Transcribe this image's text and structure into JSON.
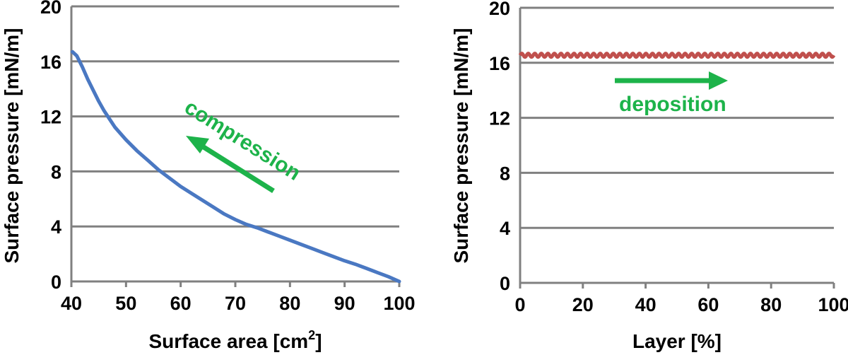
{
  "chart_data": [
    {
      "type": "line",
      "xlabel": "Surface area [cm",
      "xlabel_sup": "2",
      "xlabel_end": "]",
      "ylabel": "Surface pressure [mN/m]",
      "xlim": [
        40,
        100
      ],
      "ylim": [
        0,
        20
      ],
      "xticks": [
        40,
        50,
        60,
        70,
        80,
        90,
        100
      ],
      "yticks": [
        0,
        4,
        8,
        12,
        16,
        20
      ],
      "xtick_labels": [
        "40",
        "50",
        "60",
        "70",
        "80",
        "90",
        "100"
      ],
      "ytick_labels": [
        "0",
        "4",
        "8",
        "12",
        "16",
        "20"
      ],
      "grid": true,
      "series": [
        {
          "color": "#4a78c2",
          "x": [
            40.2,
            41,
            42,
            43,
            44,
            45,
            46,
            47,
            48,
            50,
            52,
            54,
            56,
            58,
            60,
            62,
            64,
            66,
            68,
            70,
            72,
            74,
            76,
            78,
            80,
            82,
            84,
            86,
            88,
            90,
            92,
            94,
            96,
            98,
            100
          ],
          "y": [
            16.7,
            16.4,
            15.6,
            14.7,
            13.9,
            13.1,
            12.4,
            11.8,
            11.2,
            10.3,
            9.5,
            8.8,
            8.1,
            7.5,
            6.9,
            6.4,
            5.9,
            5.4,
            4.9,
            4.5,
            4.15,
            3.9,
            3.6,
            3.3,
            3.0,
            2.7,
            2.4,
            2.1,
            1.8,
            1.5,
            1.25,
            0.95,
            0.65,
            0.35,
            0.0
          ]
        }
      ],
      "annotation": {
        "text": "compression",
        "color": "#1db34a"
      }
    },
    {
      "type": "line",
      "xlabel": "Layer [%]",
      "ylabel": "Surface pressure [mN/m]",
      "xlim": [
        0,
        100
      ],
      "ylim": [
        0,
        20
      ],
      "xticks": [
        0,
        20,
        40,
        60,
        80,
        100
      ],
      "yticks": [
        0,
        4,
        8,
        12,
        16,
        20
      ],
      "xtick_labels": [
        "0",
        "20",
        "40",
        "60",
        "80",
        "100"
      ],
      "ytick_labels": [
        "0",
        "4",
        "8",
        "12",
        "16",
        "20"
      ],
      "grid": true,
      "series": [
        {
          "color": "#c0504d",
          "x_start": 0,
          "x_end": 100,
          "mean": 16.55,
          "ripple_amplitude": 0.13,
          "ripple_cycles": 48
        }
      ],
      "annotation": {
        "text": "deposition",
        "color": "#1db34a"
      }
    }
  ]
}
